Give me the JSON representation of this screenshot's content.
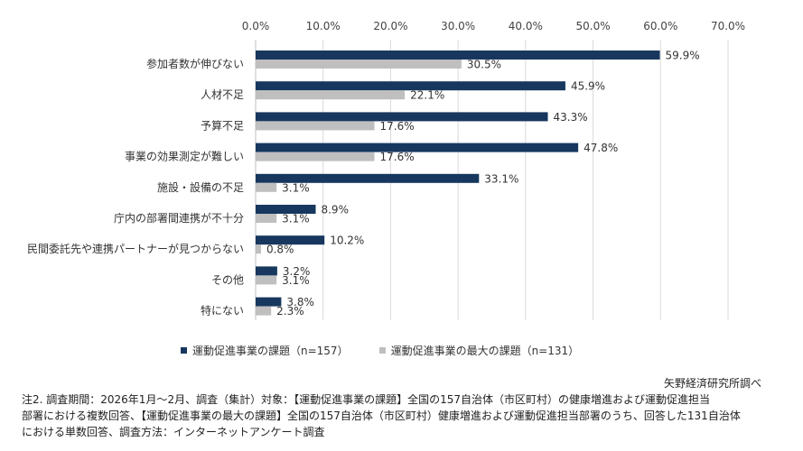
{
  "chart_data": {
    "type": "bar",
    "orientation": "horizontal",
    "categories": [
      "参加者数が伸びない",
      "人材不足",
      "予算不足",
      "事業の効果測定が難しい",
      "施設・設備の不足",
      "庁内の部署間連携が不十分",
      "民間委託先や連携パートナーが見つからない",
      "その他",
      "特にない"
    ],
    "series": [
      {
        "name": "運動促進事業の課題（n=157）",
        "color": "#17375e",
        "values": [
          59.9,
          45.9,
          43.3,
          47.8,
          33.1,
          8.9,
          10.2,
          3.2,
          3.8
        ],
        "labels": [
          "59.9%",
          "45.9%",
          "43.3%",
          "47.8%",
          "33.1%",
          "8.9%",
          "10.2%",
          "3.2%",
          "3.8%"
        ]
      },
      {
        "name": "運動促進事業の最大の課題（n=131）",
        "color": "#bfbfbf",
        "values": [
          30.5,
          22.1,
          17.6,
          17.6,
          3.1,
          3.1,
          0.8,
          3.1,
          2.3
        ],
        "labels": [
          "30.5%",
          "22.1%",
          "17.6%",
          "17.6%",
          "3.1%",
          "3.1%",
          "0.8%",
          "3.1%",
          "2.3%"
        ]
      }
    ],
    "xlim": [
      0,
      70
    ],
    "xticks": [
      "0.0%",
      "10.0%",
      "20.0%",
      "30.0%",
      "40.0%",
      "50.0%",
      "60.0%",
      "70.0%"
    ],
    "axis_position": "top",
    "grid": true,
    "legend_position": "bottom"
  },
  "credit": "矢野経済研究所調べ",
  "note": [
    "注2. 調査期間：2026年1月～2月、調査（集計）対象：【運動促進事業の課題】全国の157自治体（市区町村）の健康増進および運動促進担当",
    "部署における複数回答、【運動促進事業の最大の課題】全国の157自治体（市区町村）健康増進および運動促進担当部署のうち、回答した131自治体",
    "における単数回答、調査方法：インターネットアンケート調査"
  ]
}
